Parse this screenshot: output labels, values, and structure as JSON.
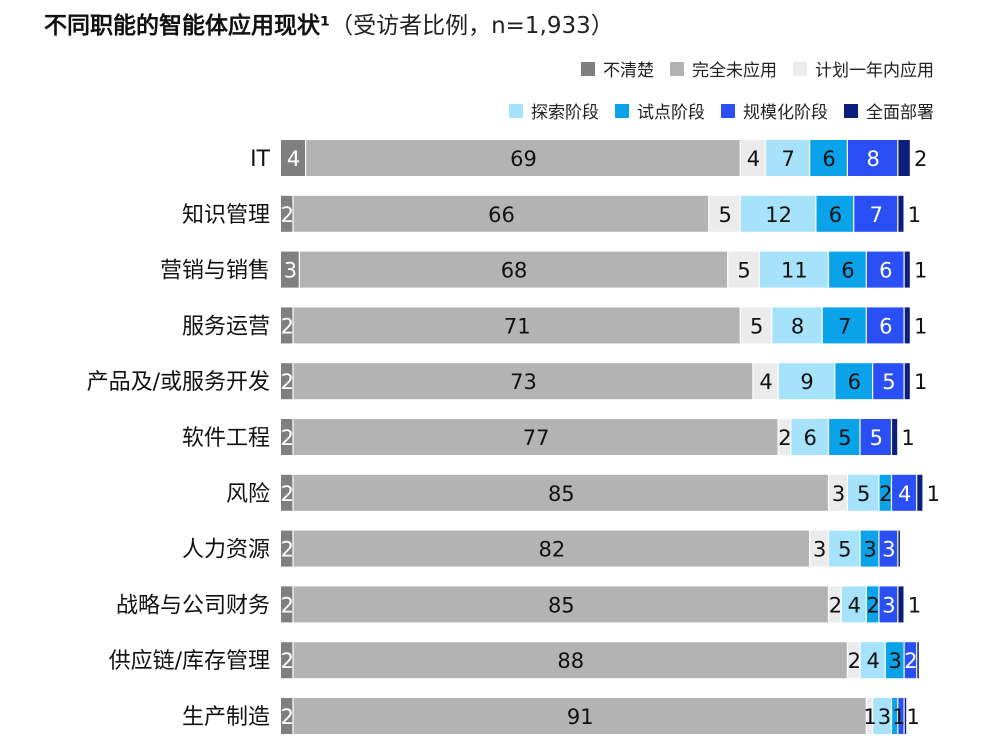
{
  "chart_data": {
    "type": "bar",
    "orientation": "horizontal-stacked",
    "title": "不同职能的智能体应用现状¹",
    "subtitle": "（受访者比例，n=1,933）",
    "categories": [
      "IT",
      "知识管理",
      "营销与销售",
      "服务运营",
      "产品及/或服务开发",
      "软件工程",
      "风险",
      "人力资源",
      "战略与公司财务",
      "供应链/库存管理",
      "生产制造"
    ],
    "series": [
      {
        "name": "不清楚",
        "color": "#7f7f7f",
        "values": [
          4,
          2,
          3,
          2,
          2,
          2,
          2,
          2,
          2,
          2,
          2
        ]
      },
      {
        "name": "完全未应用",
        "color": "#b3b3b3",
        "values": [
          69,
          66,
          68,
          71,
          73,
          77,
          85,
          82,
          85,
          88,
          91
        ]
      },
      {
        "name": "计划一年内应用",
        "color": "#ebebeb",
        "values": [
          4,
          5,
          5,
          5,
          4,
          2,
          3,
          3,
          2,
          2,
          1
        ]
      },
      {
        "name": "探索阶段",
        "color": "#a6e3fa",
        "values": [
          7,
          12,
          11,
          8,
          9,
          6,
          5,
          5,
          4,
          4,
          3
        ]
      },
      {
        "name": "试点阶段",
        "color": "#0aa3ea",
        "values": [
          6,
          6,
          6,
          7,
          6,
          5,
          2,
          3,
          2,
          3,
          1
        ]
      },
      {
        "name": "规模化阶段",
        "color": "#2a4ff5",
        "values": [
          8,
          7,
          6,
          6,
          5,
          5,
          4,
          3,
          3,
          2,
          1
        ]
      },
      {
        "name": "全面部署",
        "color": "#0b1f7a",
        "values": [
          2,
          1,
          1,
          1,
          1,
          1,
          1,
          null,
          1,
          null,
          null
        ]
      }
    ],
    "legend_placement": "top-right",
    "grid": false
  }
}
